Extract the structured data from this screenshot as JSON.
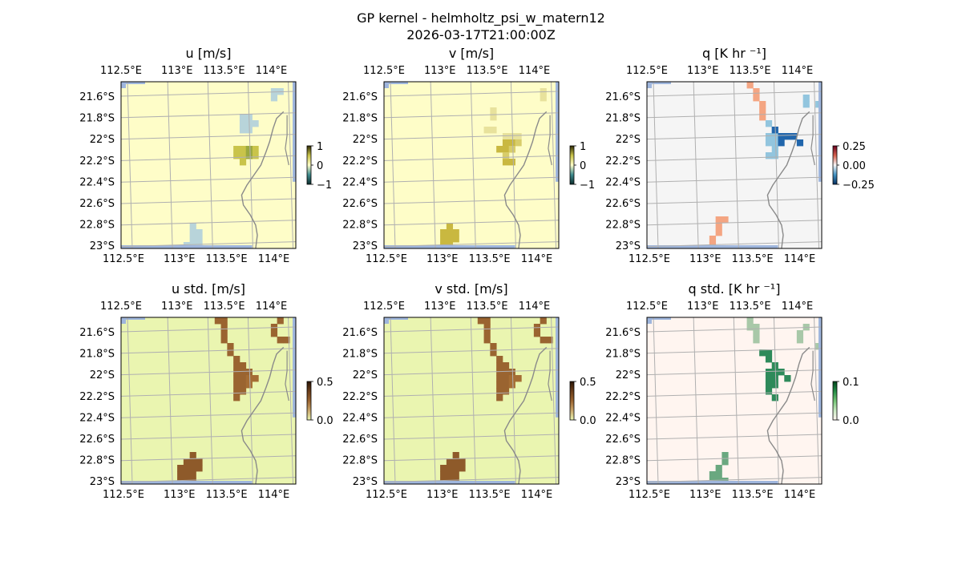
{
  "figure": {
    "title": "GP kernel - helmholtz_psi_w_matern12",
    "subtitle": "2026-03-17T21:00:00Z"
  },
  "chart_data": [
    {
      "type": "heatmap",
      "title": "u [m/s]",
      "x_ticks": [
        "112.5°E",
        "113°E",
        "113.5°E",
        "114°E"
      ],
      "y_ticks": [
        "21.6°S",
        "21.8°S",
        "22°S",
        "22.2°S",
        "22.4°S",
        "22.6°S",
        "22.8°S",
        "23°S"
      ],
      "colorbar": {
        "ticks": [
          "1",
          "0",
          "−1"
        ],
        "range": [
          -1,
          1
        ]
      },
      "colors": {
        "background": "#fefdc8",
        "feature_a": "#c9c44a",
        "feature_b": "#b8d4da",
        "feature_c": "#9aa840"
      }
    },
    {
      "type": "heatmap",
      "title": "v [m/s]",
      "x_ticks": [
        "112.5°E",
        "113°E",
        "113.5°E",
        "114°E"
      ],
      "y_ticks": [
        "21.6°S",
        "21.8°S",
        "22°S",
        "22.2°S",
        "22.4°S",
        "22.6°S",
        "22.8°S",
        "23°S"
      ],
      "colorbar": {
        "ticks": [
          "1",
          "0",
          "−1"
        ],
        "range": [
          -1,
          1
        ]
      },
      "colors": {
        "background": "#fefdc8",
        "feature_a": "#d8cd6a",
        "feature_b": "#c9b840",
        "feature_c": "#e8e29c"
      }
    },
    {
      "type": "heatmap",
      "title": "q [K hr ⁻¹]",
      "x_ticks": [
        "112.5°E",
        "113°E",
        "113.5°E",
        "114°E"
      ],
      "y_ticks": [
        "21.6°S",
        "21.8°S",
        "22°S",
        "22.2°S",
        "22.4°S",
        "22.6°S",
        "22.8°S",
        "23°S"
      ],
      "colorbar": {
        "ticks": [
          "0.25",
          "0.00",
          "−0.25"
        ],
        "range": [
          -0.25,
          0.25
        ]
      },
      "colors": {
        "background": "#f5f5f5",
        "feature_a": "#2166ac",
        "feature_b": "#92c5de",
        "feature_c": "#f4a582"
      }
    },
    {
      "type": "heatmap",
      "title": "u std. [m/s]",
      "x_ticks": [
        "112.5°E",
        "113°E",
        "113.5°E",
        "114°E"
      ],
      "y_ticks": [
        "21.6°S",
        "21.8°S",
        "22°S",
        "22.2°S",
        "22.4°S",
        "22.6°S",
        "22.8°S",
        "23°S"
      ],
      "colorbar": {
        "ticks": [
          "0.5",
          "0.0"
        ],
        "range": [
          0,
          0.5
        ]
      },
      "colors": {
        "background": "#eaf5b0",
        "feature_a": "#9a6430",
        "feature_b": "#a56d34",
        "feature_c": "#8e5a2a"
      }
    },
    {
      "type": "heatmap",
      "title": "v std. [m/s]",
      "x_ticks": [
        "112.5°E",
        "113°E",
        "113.5°E",
        "114°E"
      ],
      "y_ticks": [
        "21.6°S",
        "21.8°S",
        "22°S",
        "22.2°S",
        "22.4°S",
        "22.6°S",
        "22.8°S",
        "23°S"
      ],
      "colorbar": {
        "ticks": [
          "0.5",
          "0.0"
        ],
        "range": [
          0,
          0.5
        ]
      },
      "colors": {
        "background": "#eaf5b0",
        "feature_a": "#9a6430",
        "feature_b": "#a56d34",
        "feature_c": "#8e5a2a"
      }
    },
    {
      "type": "heatmap",
      "title": "q std. [K hr ⁻¹]",
      "x_ticks": [
        "112.5°E",
        "113°E",
        "113.5°E",
        "114°E"
      ],
      "y_ticks": [
        "21.6°S",
        "21.8°S",
        "22°S",
        "22.2°S",
        "22.4°S",
        "22.6°S",
        "22.8°S",
        "23°S"
      ],
      "colorbar": {
        "ticks": [
          "0.1",
          "0.0"
        ],
        "range": [
          0,
          0.1
        ]
      },
      "colors": {
        "background": "#fff5f0",
        "feature_a": "#2e8a5a",
        "feature_b": "#a8c8a8",
        "feature_c": "#6aa880"
      }
    }
  ]
}
